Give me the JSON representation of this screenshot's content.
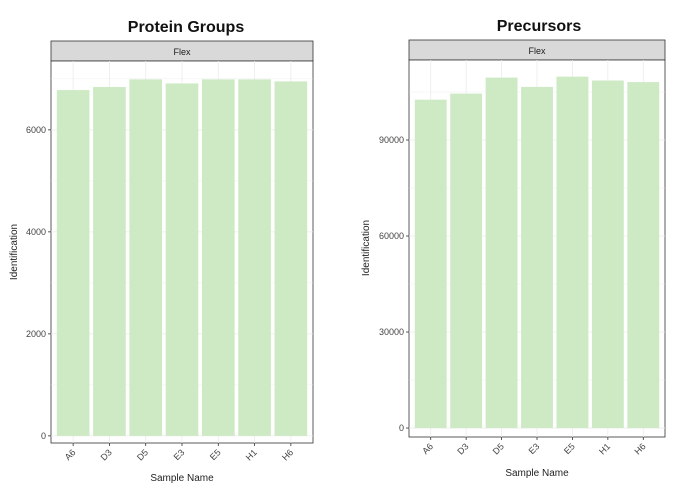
{
  "colors": {
    "bar": "#cdeac5",
    "strip": "#d9d9d9",
    "grid": "#ebebeb",
    "panel_border": "#333333"
  },
  "chart_data": [
    {
      "type": "bar",
      "title": "Protein Groups",
      "facet": "Flex",
      "xlabel": "Sample Name",
      "ylabel": "Identification",
      "categories": [
        "A6",
        "D3",
        "D5",
        "E3",
        "E5",
        "H1",
        "H6"
      ],
      "values": [
        6780,
        6840,
        6990,
        6910,
        6990,
        6990,
        6950
      ],
      "ylim": [
        -140,
        7350
      ],
      "yticks": [
        0,
        2000,
        4000,
        6000
      ],
      "grid": true
    },
    {
      "type": "bar",
      "title": "Precursors",
      "facet": "Flex",
      "xlabel": "Sample Name",
      "ylabel": "Identification",
      "categories": [
        "A6",
        "D3",
        "D5",
        "E3",
        "E5",
        "H1",
        "H6"
      ],
      "values": [
        102600,
        104500,
        109500,
        106600,
        109800,
        108600,
        108100
      ],
      "ylim": [
        -2800,
        115000
      ],
      "yticks": [
        0,
        30000,
        60000,
        90000
      ],
      "grid": true
    }
  ]
}
